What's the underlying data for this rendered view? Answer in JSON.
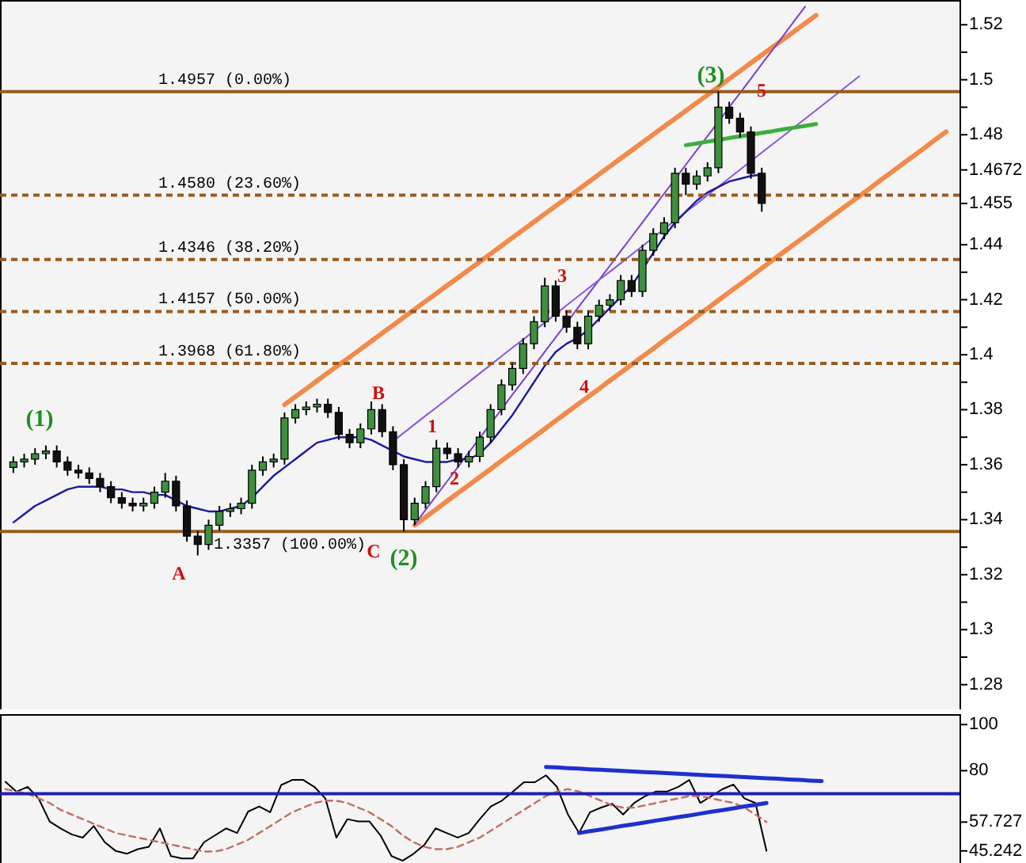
{
  "chart_data": [
    {
      "type": "candlestick",
      "tick_labels": "y",
      "categories": [
        null,
        null,
        null,
        null,
        null,
        null,
        null,
        null,
        null,
        null,
        null,
        null,
        null,
        null,
        null,
        null,
        null,
        null,
        null,
        null,
        null,
        null,
        null,
        null,
        null,
        null,
        null,
        null,
        null,
        null,
        null,
        null,
        null,
        null,
        null,
        null,
        null,
        null,
        null,
        null,
        null,
        null,
        null,
        null,
        null,
        null,
        null,
        null,
        null,
        null,
        null,
        null,
        null,
        null,
        null,
        null,
        null,
        null,
        null,
        null,
        null,
        null,
        null,
        null,
        null,
        null,
        null,
        null,
        null,
        null,
        null,
        null,
        null,
        null,
        null,
        null,
        null,
        null,
        null,
        null,
        null,
        null,
        null,
        null,
        null,
        null,
        null
      ],
      "ohlc": [
        [
          1.359,
          1.363,
          1.357,
          1.361
        ],
        [
          1.361,
          1.364,
          1.359,
          1.362
        ],
        [
          1.362,
          1.366,
          1.36,
          1.364
        ],
        [
          1.364,
          1.367,
          1.362,
          1.365
        ],
        [
          1.365,
          1.367,
          1.359,
          1.361
        ],
        [
          1.361,
          1.363,
          1.356,
          1.358
        ],
        [
          1.358,
          1.36,
          1.355,
          1.357
        ],
        [
          1.357,
          1.359,
          1.353,
          1.355
        ],
        [
          1.355,
          1.357,
          1.35,
          1.352
        ],
        [
          1.352,
          1.354,
          1.346,
          1.348
        ],
        [
          1.348,
          1.35,
          1.344,
          1.346
        ],
        [
          1.346,
          1.348,
          1.343,
          1.345
        ],
        [
          1.345,
          1.348,
          1.343,
          1.346
        ],
        [
          1.346,
          1.352,
          1.344,
          1.35
        ],
        [
          1.35,
          1.357,
          1.348,
          1.354
        ],
        [
          1.354,
          1.356,
          1.343,
          1.345
        ],
        [
          1.345,
          1.347,
          1.332,
          1.334
        ],
        [
          1.334,
          1.336,
          1.327,
          1.331
        ],
        [
          1.331,
          1.34,
          1.329,
          1.338
        ],
        [
          1.338,
          1.345,
          1.336,
          1.343
        ],
        [
          1.343,
          1.346,
          1.341,
          1.344
        ],
        [
          1.344,
          1.348,
          1.342,
          1.346
        ],
        [
          1.346,
          1.36,
          1.344,
          1.358
        ],
        [
          1.358,
          1.363,
          1.356,
          1.361
        ],
        [
          1.361,
          1.364,
          1.359,
          1.362
        ],
        [
          1.362,
          1.379,
          1.36,
          1.377
        ],
        [
          1.377,
          1.382,
          1.375,
          1.38
        ],
        [
          1.38,
          1.383,
          1.378,
          1.381
        ],
        [
          1.381,
          1.384,
          1.379,
          1.382
        ],
        [
          1.382,
          1.384,
          1.377,
          1.379
        ],
        [
          1.379,
          1.381,
          1.369,
          1.371
        ],
        [
          1.371,
          1.373,
          1.366,
          1.368
        ],
        [
          1.368,
          1.375,
          1.366,
          1.373
        ],
        [
          1.373,
          1.383,
          1.371,
          1.38
        ],
        [
          1.38,
          1.382,
          1.37,
          1.372
        ],
        [
          1.372,
          1.374,
          1.358,
          1.36
        ],
        [
          1.36,
          1.362,
          1.3357,
          1.34
        ],
        [
          1.34,
          1.348,
          1.338,
          1.346
        ],
        [
          1.346,
          1.354,
          1.344,
          1.352
        ],
        [
          1.352,
          1.369,
          1.35,
          1.366
        ],
        [
          1.366,
          1.368,
          1.362,
          1.364
        ],
        [
          1.364,
          1.366,
          1.359,
          1.361
        ],
        [
          1.361,
          1.365,
          1.359,
          1.363
        ],
        [
          1.363,
          1.372,
          1.361,
          1.37
        ],
        [
          1.37,
          1.382,
          1.368,
          1.38
        ],
        [
          1.38,
          1.391,
          1.378,
          1.389
        ],
        [
          1.389,
          1.397,
          1.387,
          1.395
        ],
        [
          1.395,
          1.406,
          1.393,
          1.404
        ],
        [
          1.404,
          1.414,
          1.402,
          1.412
        ],
        [
          1.412,
          1.428,
          1.41,
          1.425
        ],
        [
          1.425,
          1.427,
          1.412,
          1.414
        ],
        [
          1.414,
          1.416,
          1.408,
          1.41
        ],
        [
          1.41,
          1.412,
          1.402,
          1.404
        ],
        [
          1.404,
          1.416,
          1.402,
          1.414
        ],
        [
          1.414,
          1.42,
          1.412,
          1.418
        ],
        [
          1.418,
          1.422,
          1.416,
          1.42
        ],
        [
          1.42,
          1.429,
          1.418,
          1.427
        ],
        [
          1.427,
          1.429,
          1.421,
          1.423
        ],
        [
          1.423,
          1.44,
          1.421,
          1.438
        ],
        [
          1.438,
          1.446,
          1.436,
          1.444
        ],
        [
          1.444,
          1.45,
          1.442,
          1.448
        ],
        [
          1.448,
          1.468,
          1.446,
          1.466
        ],
        [
          1.466,
          1.468,
          1.458,
          1.462
        ],
        [
          1.462,
          1.467,
          1.46,
          1.465
        ],
        [
          1.465,
          1.47,
          1.463,
          1.468
        ],
        [
          1.468,
          1.4957,
          1.466,
          1.49
        ],
        [
          1.49,
          1.492,
          1.484,
          1.486
        ],
        [
          1.486,
          1.488,
          1.479,
          1.481
        ],
        [
          1.481,
          1.483,
          1.464,
          1.466
        ],
        [
          1.466,
          1.468,
          1.452,
          1.455
        ],
        null,
        null,
        null,
        null,
        null,
        null,
        null,
        null,
        null,
        null,
        null,
        null,
        null,
        null,
        null,
        null,
        null
      ],
      "series": [
        {
          "type": "line",
          "color": "#f28a4a",
          "values": [
            null,
            null,
            null,
            null,
            null,
            null,
            null,
            null,
            null,
            null,
            null,
            null,
            null,
            null,
            null,
            null,
            null,
            null,
            null,
            null,
            null,
            null,
            null,
            null,
            null,
            1.3818,
            1.3847,
            1.3876,
            1.3905,
            1.3934,
            1.3963,
            1.3991,
            1.402,
            1.4049,
            1.4078,
            1.4107,
            1.4136,
            1.4165,
            1.4194,
            1.4223,
            1.4252,
            1.428,
            1.4309,
            1.4338,
            1.4367,
            1.4396,
            1.4425,
            1.4454,
            1.4483,
            1.4512,
            1.4541,
            1.4569,
            1.4598,
            1.4627,
            1.4656,
            1.4685,
            1.4714,
            1.4743,
            1.4772,
            1.4801,
            1.483,
            1.4858,
            1.4887,
            1.4916,
            1.4945,
            1.4974,
            1.5003,
            1.5032,
            1.5061,
            1.509,
            1.5119,
            1.5147,
            1.5176,
            1.5205,
            1.5234,
            null,
            null,
            null,
            null,
            null,
            null,
            null,
            null,
            null,
            null,
            null,
            null
          ]
        },
        {
          "type": "line",
          "color": "#f28a4a",
          "values": [
            null,
            null,
            null,
            null,
            null,
            null,
            null,
            null,
            null,
            null,
            null,
            null,
            null,
            null,
            null,
            null,
            null,
            null,
            null,
            null,
            null,
            null,
            null,
            null,
            null,
            null,
            null,
            null,
            null,
            null,
            null,
            null,
            null,
            null,
            null,
            null,
            null,
            1.338,
            1.3409,
            1.3438,
            1.3468,
            1.3497,
            1.3526,
            1.3555,
            1.3584,
            1.3614,
            1.3643,
            1.3672,
            1.3701,
            1.373,
            1.376,
            1.3789,
            1.3818,
            1.3847,
            1.3876,
            1.3906,
            1.3935,
            1.3964,
            1.3993,
            1.4022,
            1.4052,
            1.4081,
            1.411,
            1.4139,
            1.4168,
            1.4198,
            1.4227,
            1.4256,
            1.4285,
            1.4314,
            1.4344,
            1.4373,
            1.4402,
            1.4431,
            1.446,
            1.449,
            1.4519,
            1.4548,
            1.4577,
            1.4606,
            1.4636,
            1.4665,
            1.4694,
            1.4723,
            1.4752,
            1.4782,
            1.4811
          ]
        },
        {
          "type": "line",
          "color": "#7b3fd0",
          "values": [
            null,
            null,
            null,
            null,
            null,
            null,
            null,
            null,
            null,
            null,
            null,
            null,
            null,
            null,
            null,
            null,
            null,
            null,
            null,
            null,
            null,
            null,
            null,
            null,
            null,
            null,
            null,
            null,
            null,
            null,
            null,
            null,
            null,
            null,
            null,
            null,
            null,
            1.3383,
            1.3435,
            1.3488,
            1.354,
            1.3592,
            1.3645,
            1.3697,
            1.3749,
            1.3801,
            1.3854,
            1.3906,
            1.3958,
            1.4011,
            1.4063,
            1.4115,
            1.4168,
            1.422,
            1.4272,
            1.4324,
            1.4377,
            1.4429,
            1.4481,
            1.4534,
            1.4586,
            1.4638,
            1.4691,
            1.4743,
            1.4795,
            1.4847,
            1.49,
            1.4952,
            1.5004,
            1.5057,
            1.5109,
            1.5161,
            1.5214,
            1.5266,
            null,
            null,
            null,
            null,
            null,
            null,
            null,
            null,
            null,
            null,
            null,
            null,
            null
          ]
        },
        {
          "type": "line",
          "color": "#8a55e0",
          "values": [
            null,
            null,
            null,
            null,
            null,
            null,
            null,
            null,
            null,
            null,
            null,
            null,
            null,
            null,
            null,
            null,
            null,
            null,
            null,
            null,
            null,
            null,
            null,
            null,
            null,
            null,
            null,
            null,
            null,
            null,
            null,
            null,
            null,
            null,
            null,
            1.3685,
            1.3716,
            1.3747,
            1.3778,
            1.3808,
            1.3839,
            1.387,
            1.3901,
            1.3932,
            1.3963,
            1.3994,
            1.4025,
            1.4055,
            1.4086,
            1.4117,
            1.4148,
            1.4179,
            1.421,
            1.4241,
            1.4272,
            1.4302,
            1.4333,
            1.4364,
            1.4395,
            1.4426,
            1.4457,
            1.4488,
            1.4519,
            1.4549,
            1.458,
            1.4611,
            1.4642,
            1.4673,
            1.4704,
            1.4735,
            1.4766,
            1.4796,
            1.4827,
            1.4858,
            1.4889,
            1.492,
            1.4951,
            1.4982,
            1.5013,
            null,
            null,
            null,
            null,
            null,
            null,
            null,
            null
          ]
        },
        {
          "type": "line",
          "color": "#3cae3c",
          "values": [
            null,
            null,
            null,
            null,
            null,
            null,
            null,
            null,
            null,
            null,
            null,
            null,
            null,
            null,
            null,
            null,
            null,
            null,
            null,
            null,
            null,
            null,
            null,
            null,
            null,
            null,
            null,
            null,
            null,
            null,
            null,
            null,
            null,
            null,
            null,
            null,
            null,
            null,
            null,
            null,
            null,
            null,
            null,
            null,
            null,
            null,
            null,
            null,
            null,
            null,
            null,
            null,
            null,
            null,
            null,
            null,
            null,
            null,
            null,
            null,
            null,
            null,
            1.4762,
            1.4768,
            1.4775,
            1.4781,
            1.4788,
            1.4794,
            1.48,
            1.4807,
            1.4813,
            1.482,
            1.4826,
            1.4832,
            1.4839,
            null,
            null,
            null,
            null,
            null,
            null,
            null,
            null,
            null,
            null,
            null,
            null
          ]
        },
        {
          "type": "line",
          "color": "#1a1aa0",
          "values": [
            1.339,
            1.342,
            1.345,
            1.347,
            1.349,
            1.351,
            1.352,
            1.352,
            1.352,
            1.351,
            1.351,
            1.35,
            1.35,
            1.349,
            1.349,
            1.347,
            1.345,
            1.344,
            1.343,
            1.343,
            1.344,
            1.345,
            1.348,
            1.352,
            1.356,
            1.359,
            1.362,
            1.365,
            1.368,
            1.369,
            1.37,
            1.37,
            1.37,
            1.369,
            1.367,
            1.365,
            1.363,
            1.362,
            1.361,
            1.361,
            1.361,
            1.362,
            1.362,
            1.364,
            1.368,
            1.373,
            1.378,
            1.384,
            1.39,
            1.396,
            1.401,
            1.404,
            1.406,
            1.409,
            1.413,
            1.417,
            1.421,
            1.425,
            1.431,
            1.437,
            1.443,
            1.448,
            1.452,
            1.456,
            1.459,
            1.461,
            1.463,
            1.464,
            1.465,
            1.4655,
            null,
            null,
            null,
            null,
            null,
            null,
            null,
            null,
            null,
            null,
            null,
            null,
            null,
            null,
            null,
            null,
            null
          ]
        }
      ],
      "ylim": [
        1.271,
        1.529
      ],
      "yticks": [
        1.28,
        {
          "value": 1.29,
          "label": null
        },
        1.3,
        {
          "value": 1.31,
          "label": null
        },
        1.32,
        {
          "value": 1.33,
          "label": null
        },
        1.34,
        {
          "value": 1.35,
          "label": null
        },
        1.36,
        {
          "value": 1.37,
          "label": null
        },
        1.38,
        {
          "value": 1.39,
          "label": null
        },
        1.4,
        {
          "value": 1.41,
          "label": null
        },
        1.42,
        {
          "value": 1.43,
          "label": null
        },
        1.44,
        1.455,
        1.4672,
        1.48,
        {
          "value": 1.49,
          "label": null
        },
        1.5,
        {
          "value": 1.51,
          "label": null
        },
        1.52
      ],
      "ref_lines": [
        {
          "axis": "y",
          "value": 1.4957,
          "label": "1.4957 (0.00%)",
          "color": "#9a5a1e",
          "line_style": "solid"
        },
        {
          "axis": "y",
          "value": 1.458,
          "label": "1.4580 (23.60%)",
          "color": "#9a5a1e",
          "line_style": "dashed"
        },
        {
          "axis": "y",
          "value": 1.4346,
          "label": "1.4346 (38.20%)",
          "color": "#9a5a1e",
          "line_style": "dashed"
        },
        {
          "axis": "y",
          "value": 1.4157,
          "label": "1.4157 (50.00%)",
          "color": "#9a5a1e",
          "line_style": "dashed"
        },
        {
          "axis": "y",
          "value": 1.3968,
          "label": "1.3968 (61.80%)",
          "color": "#9a5a1e",
          "line_style": "dashed"
        },
        {
          "axis": "y",
          "value": 1.3357,
          "label": "1.3357 (100.00%)",
          "color": "#9a5a1e",
          "line_style": "solid"
        }
      ],
      "annotations": [
        "(1)",
        "A",
        "B",
        "C",
        "(2)",
        "1",
        "2",
        "3",
        "4",
        "5",
        "(3)"
      ]
    },
    {
      "type": "line",
      "tick_labels": "y",
      "categories": [
        null,
        null,
        null,
        null,
        null,
        null,
        null,
        null,
        null,
        null,
        null,
        null,
        null,
        null,
        null,
        null,
        null,
        null,
        null,
        null,
        null,
        null,
        null,
        null,
        null,
        null,
        null,
        null,
        null,
        null,
        null,
        null,
        null,
        null,
        null,
        null,
        null,
        null,
        null,
        null,
        null,
        null,
        null,
        null,
        null,
        null,
        null,
        null,
        null,
        null,
        null,
        null,
        null,
        null,
        null,
        null,
        null,
        null,
        null,
        null,
        null,
        null,
        null,
        null,
        null,
        null,
        null,
        null,
        null,
        null,
        null,
        null,
        null,
        null,
        null,
        null,
        null,
        null,
        null,
        null,
        null,
        null,
        null,
        null,
        null,
        null,
        null
      ],
      "series": [
        {
          "color": "#000000",
          "values": [
            75.2,
            70.9,
            73,
            68,
            58,
            55,
            52.4,
            51,
            56,
            49,
            45.2,
            44,
            46,
            47,
            55,
            43,
            42,
            42,
            49,
            52,
            55,
            53,
            62.3,
            64.5,
            62,
            73.8,
            76,
            76,
            73,
            68,
            51,
            59,
            58,
            58,
            52,
            43,
            41,
            44,
            48,
            55,
            53,
            51,
            53,
            59,
            64.5,
            67,
            70.9,
            75,
            75,
            78,
            73,
            61,
            53,
            62,
            64,
            65.7,
            61,
            66,
            69,
            71,
            71,
            73,
            76,
            66,
            69,
            72,
            74,
            68,
            66,
            45.242,
            null,
            null,
            null,
            null,
            null,
            null,
            null,
            null,
            null,
            null,
            null,
            null,
            null,
            null,
            null,
            null,
            null
          ]
        },
        {
          "color": "#c07060",
          "line_style": "dashed",
          "values": [
            72,
            71,
            70,
            68,
            66,
            63,
            61,
            59,
            57,
            55,
            53,
            52,
            51,
            50,
            49,
            48,
            47,
            46,
            45,
            45,
            46,
            48,
            50,
            53,
            56,
            59,
            62,
            64,
            66,
            67,
            67,
            66,
            64,
            62,
            59,
            56,
            52,
            49,
            47,
            46,
            46,
            47,
            49,
            51,
            54,
            57,
            60,
            63,
            66,
            69,
            71,
            72,
            71,
            69,
            67,
            65,
            64,
            64,
            65,
            66,
            67,
            68,
            69,
            69,
            68,
            67,
            66,
            64,
            61,
            57.727,
            null,
            null,
            null,
            null,
            null,
            null,
            null,
            null,
            null,
            null,
            null,
            null,
            null,
            null,
            null,
            null,
            null
          ]
        },
        {
          "color": "#1f2fd0",
          "values": [
            null,
            null,
            null,
            null,
            null,
            null,
            null,
            null,
            null,
            null,
            null,
            null,
            null,
            null,
            null,
            null,
            null,
            null,
            null,
            null,
            null,
            null,
            null,
            null,
            null,
            null,
            null,
            null,
            null,
            null,
            null,
            null,
            null,
            null,
            null,
            null,
            null,
            null,
            null,
            null,
            null,
            null,
            null,
            null,
            null,
            null,
            null,
            null,
            null,
            81.6,
            81.4,
            81.1,
            80.9,
            80.6,
            80.4,
            80.1,
            79.9,
            79.6,
            79.4,
            79.2,
            78.9,
            78.7,
            78.4,
            78.2,
            77.9,
            77.7,
            77.5,
            77.2,
            77.0,
            76.7,
            76.5,
            76.2,
            76.0,
            75.7,
            75.5,
            null,
            null,
            null,
            null,
            null,
            null,
            null,
            null,
            null,
            null,
            null,
            null
          ]
        },
        {
          "color": "#1f2fd0",
          "values": [
            null,
            null,
            null,
            null,
            null,
            null,
            null,
            null,
            null,
            null,
            null,
            null,
            null,
            null,
            null,
            null,
            null,
            null,
            null,
            null,
            null,
            null,
            null,
            null,
            null,
            null,
            null,
            null,
            null,
            null,
            null,
            null,
            null,
            null,
            null,
            null,
            null,
            null,
            null,
            null,
            null,
            null,
            null,
            null,
            null,
            null,
            null,
            null,
            null,
            null,
            null,
            null,
            53.0,
            53.8,
            54.5,
            55.3,
            56.1,
            56.8,
            57.6,
            58.4,
            59.1,
            59.9,
            60.6,
            61.4,
            62.2,
            62.9,
            63.7,
            64.5,
            65.2,
            66.0,
            null,
            null,
            null,
            null,
            null,
            null,
            null,
            null,
            null,
            null,
            null,
            null,
            null,
            null,
            null,
            null,
            null
          ]
        }
      ],
      "ylim": [
        40,
        104.5
      ],
      "yticks": [
        45.242,
        57.727,
        80,
        100
      ],
      "ref_lines": [
        {
          "axis": "y",
          "value": 70,
          "color": "#2020b0",
          "line_style": "solid"
        }
      ]
    }
  ]
}
